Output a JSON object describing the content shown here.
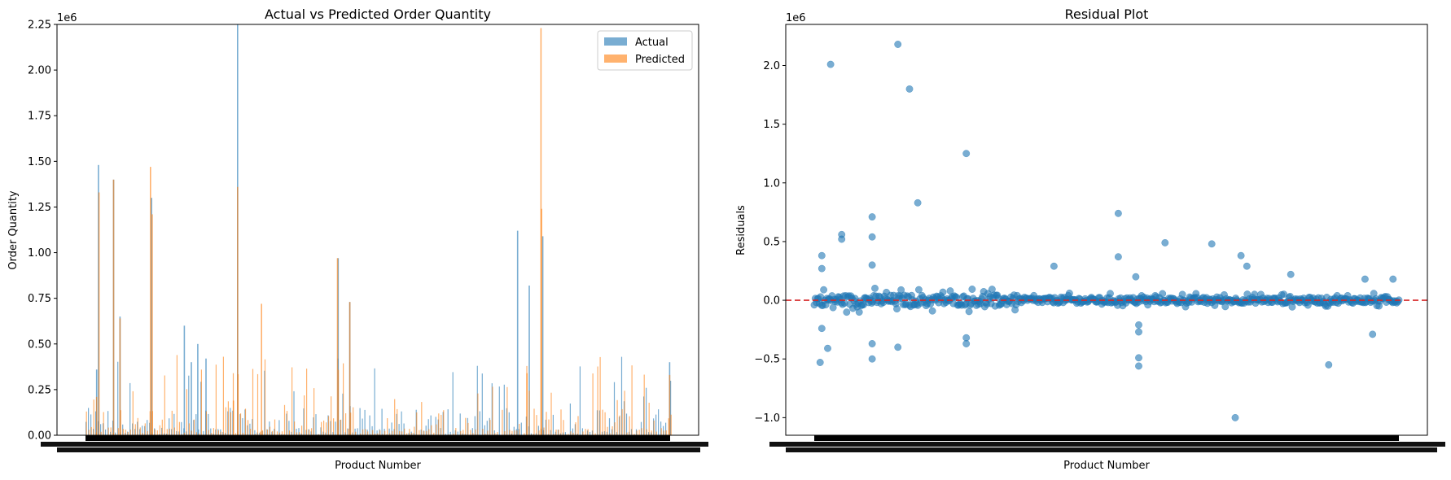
{
  "chart_data": [
    {
      "type": "bar",
      "title": "Actual vs Predicted Order Quantity",
      "xlabel": "Product Number",
      "ylabel": "Order Quantity",
      "ylim": [
        0,
        2250000
      ],
      "y_offset_label": "1e6",
      "y_ticks": [
        "0.00",
        "0.25",
        "0.50",
        "0.75",
        "1.00",
        "1.25",
        "1.50",
        "1.75",
        "2.00",
        "2.25"
      ],
      "y_tick_values": [
        0,
        250000,
        500000,
        750000,
        1000000,
        1250000,
        1500000,
        1750000,
        2000000,
        2250000
      ],
      "x_tick_labels": "dense overlapping product number labels (illegible)",
      "legend": "top-right",
      "grid": false,
      "series": [
        {
          "name": "Actual",
          "color": "#1f77b4",
          "alpha": 0.6,
          "peaks": [
            [
              0.018,
              360000
            ],
            [
              0.021,
              1480000
            ],
            [
              0.047,
              1400000
            ],
            [
              0.058,
              650000
            ],
            [
              0.112,
              1300000
            ],
            [
              0.168,
              600000
            ],
            [
              0.18,
              400000
            ],
            [
              0.191,
              500000
            ],
            [
              0.205,
              420000
            ],
            [
              0.259,
              2250000
            ],
            [
              0.431,
              970000
            ],
            [
              0.451,
              730000
            ],
            [
              0.738,
              1120000
            ],
            [
              0.758,
              820000
            ],
            [
              0.781,
              1090000
            ],
            [
              0.998,
              400000
            ]
          ]
        },
        {
          "name": "Predicted",
          "color": "#ff7f0e",
          "alpha": 0.6,
          "peaks": [
            [
              0.018,
              210000
            ],
            [
              0.022,
              1330000
            ],
            [
              0.047,
              1400000
            ],
            [
              0.058,
              640000
            ],
            [
              0.11,
              1470000
            ],
            [
              0.113,
              1210000
            ],
            [
              0.252,
              190000
            ],
            [
              0.259,
              1360000
            ],
            [
              0.3,
              720000
            ],
            [
              0.43,
              970000
            ],
            [
              0.451,
              730000
            ],
            [
              0.754,
              340000
            ],
            [
              0.778,
              2230000
            ],
            [
              0.779,
              1240000
            ],
            [
              0.998,
              330000
            ]
          ]
        }
      ]
    },
    {
      "type": "scatter",
      "title": "Residual Plot",
      "xlabel": "Product Number",
      "ylabel": "Residuals",
      "ylim": [
        -1150000,
        2350000
      ],
      "y_offset_label": "1e6",
      "y_ticks": [
        "−1.0",
        "−0.5",
        "0.0",
        "0.5",
        "1.0",
        "1.5",
        "2.0"
      ],
      "y_tick_values": [
        -1000000,
        -500000,
        0,
        500000,
        1000000,
        1500000,
        2000000
      ],
      "x_tick_labels": "dense overlapping product number labels (illegible)",
      "reference_line": {
        "y": 0,
        "color": "#d62728",
        "style": "dashed"
      },
      "grid": false,
      "series": [
        {
          "color": "#1f77b4",
          "alpha": 0.6,
          "outliers": [
            [
              0.01,
              -530000
            ],
            [
              0.013,
              380000
            ],
            [
              0.013,
              270000
            ],
            [
              0.013,
              -240000
            ],
            [
              0.028,
              2010000
            ],
            [
              0.023,
              -410000
            ],
            [
              0.047,
              560000
            ],
            [
              0.047,
              520000
            ],
            [
              0.099,
              710000
            ],
            [
              0.099,
              540000
            ],
            [
              0.099,
              -370000
            ],
            [
              0.099,
              -500000
            ],
            [
              0.099,
              300000
            ],
            [
              0.143,
              2180000
            ],
            [
              0.143,
              -400000
            ],
            [
              0.163,
              1800000
            ],
            [
              0.177,
              830000
            ],
            [
              0.26,
              1250000
            ],
            [
              0.26,
              -320000
            ],
            [
              0.26,
              -370000
            ],
            [
              0.41,
              290000
            ],
            [
              0.52,
              740000
            ],
            [
              0.555,
              -210000
            ],
            [
              0.555,
              -270000
            ],
            [
              0.555,
              -490000
            ],
            [
              0.555,
              -560000
            ],
            [
              0.55,
              200000
            ],
            [
              0.52,
              370000
            ],
            [
              0.68,
              480000
            ],
            [
              0.6,
              490000
            ],
            [
              0.72,
              -1000000
            ],
            [
              0.73,
              380000
            ],
            [
              0.74,
              290000
            ],
            [
              0.815,
              220000
            ],
            [
              0.88,
              -550000
            ],
            [
              0.942,
              180000
            ],
            [
              0.955,
              -290000
            ],
            [
              0.99,
              180000
            ]
          ]
        }
      ]
    }
  ]
}
